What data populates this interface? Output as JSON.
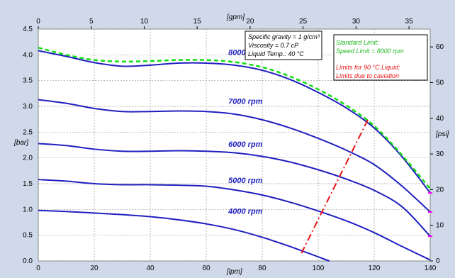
{
  "chart_data": {
    "type": "line",
    "title": "",
    "x_bottom": {
      "label": "[lpm]",
      "range": [
        0,
        140
      ],
      "ticks": [
        "0",
        "20",
        "40",
        "60",
        "80",
        "100",
        "120",
        "140"
      ]
    },
    "x_top": {
      "label": "[gpm]",
      "range": [
        0,
        37
      ],
      "ticks": [
        "0",
        "5",
        "10",
        "15",
        "20",
        "25",
        "30",
        "35"
      ]
    },
    "y_left": {
      "label": "[bar]",
      "range": [
        0,
        4.5
      ],
      "ticks": [
        "0.0",
        "0.5",
        "1.0",
        "1.5",
        "2.0",
        "2.5",
        "3.0",
        "3.5",
        "4.0",
        "4.5"
      ]
    },
    "y_right": {
      "label": "[psi]",
      "range": [
        0,
        65
      ],
      "ticks": [
        "0",
        "10",
        "20",
        "30",
        "40",
        "50",
        "60"
      ]
    },
    "grid": true,
    "series": [
      {
        "name": "8000 rpm",
        "color": "#1f1fc0",
        "x": [
          0,
          10,
          20,
          30,
          40,
          50,
          60,
          70,
          80,
          90,
          100,
          110,
          120,
          130,
          140
        ],
        "y": [
          4.08,
          3.97,
          3.85,
          3.78,
          3.8,
          3.84,
          3.84,
          3.8,
          3.7,
          3.52,
          3.27,
          2.97,
          2.58,
          2.02,
          1.32
        ]
      },
      {
        "name": "7000 rpm",
        "color": "#1f1fc0",
        "x": [
          0,
          10,
          20,
          30,
          40,
          50,
          60,
          70,
          80,
          90,
          100,
          110,
          120,
          130,
          140
        ],
        "y": [
          3.13,
          3.06,
          2.96,
          2.9,
          2.9,
          2.91,
          2.9,
          2.85,
          2.74,
          2.58,
          2.38,
          2.15,
          1.87,
          1.45,
          0.95
        ]
      },
      {
        "name": "6000 rpm",
        "color": "#1f1fc0",
        "x": [
          0,
          10,
          20,
          30,
          40,
          50,
          60,
          70,
          80,
          90,
          100,
          110,
          120,
          130,
          140
        ],
        "y": [
          2.28,
          2.24,
          2.17,
          2.13,
          2.13,
          2.14,
          2.13,
          2.1,
          2.03,
          1.92,
          1.77,
          1.59,
          1.37,
          1.05,
          0.48
        ]
      },
      {
        "name": "5000 rpm",
        "color": "#1f1fc0",
        "x": [
          0,
          10,
          20,
          30,
          40,
          50,
          60,
          70,
          80,
          90,
          100,
          110,
          120,
          130,
          140
        ],
        "y": [
          1.58,
          1.55,
          1.5,
          1.48,
          1.48,
          1.47,
          1.45,
          1.38,
          1.28,
          1.14,
          0.97,
          0.78,
          0.55,
          0.28,
          0.02
        ]
      },
      {
        "name": "4000 rpm",
        "color": "#1f1fc0",
        "x": [
          0,
          10,
          20,
          30,
          40,
          50,
          60,
          70,
          80,
          90,
          100,
          104
        ],
        "y": [
          0.98,
          0.96,
          0.93,
          0.9,
          0.86,
          0.8,
          0.72,
          0.61,
          0.46,
          0.28,
          0.08,
          0.0
        ]
      },
      {
        "name": "Standard Limit: Speed Limit = 8000 rpm",
        "color": "#11dd11",
        "style": "dashed",
        "x": [
          0,
          10,
          20,
          30,
          40,
          50,
          60,
          70,
          80,
          90,
          100,
          110,
          120,
          130,
          140
        ],
        "y": [
          4.14,
          4.0,
          3.9,
          3.87,
          3.88,
          3.9,
          3.9,
          3.86,
          3.76,
          3.58,
          3.33,
          3.02,
          2.62,
          2.05,
          1.4
        ]
      },
      {
        "name": "Limits for 90 °C Liquid: Limits due to caviation",
        "color": "#ee1111",
        "style": "dashdot",
        "x": [
          94,
          118
        ],
        "y": [
          0.15,
          2.77
        ]
      }
    ],
    "endpoint_markers": {
      "color": "#ff00ff",
      "x": 140,
      "y": [
        1.32,
        0.95,
        0.48
      ]
    },
    "labels": [
      {
        "text": "8000 rpm",
        "x": 74,
        "y": 4.05
      },
      {
        "text": "7000 rpm",
        "x": 74,
        "y": 3.1
      },
      {
        "text": "6000 rpm",
        "x": 74,
        "y": 2.27
      },
      {
        "text": "5000 rpm",
        "x": 74,
        "y": 1.57
      },
      {
        "text": "4000 rpm",
        "x": 74,
        "y": 0.97
      }
    ],
    "notes": {
      "specs": [
        "Specific gravity = 1 g/cm³",
        "Viscosity = 0.7 cP",
        "Liquid Temp.: 40 °C"
      ],
      "limits_green": [
        "Standard Limit:",
        "Speed Limit = 8000 rpm"
      ],
      "limits_red": [
        "Limits for 90 °C Liquid:",
        "Limits due to caviation"
      ]
    }
  }
}
